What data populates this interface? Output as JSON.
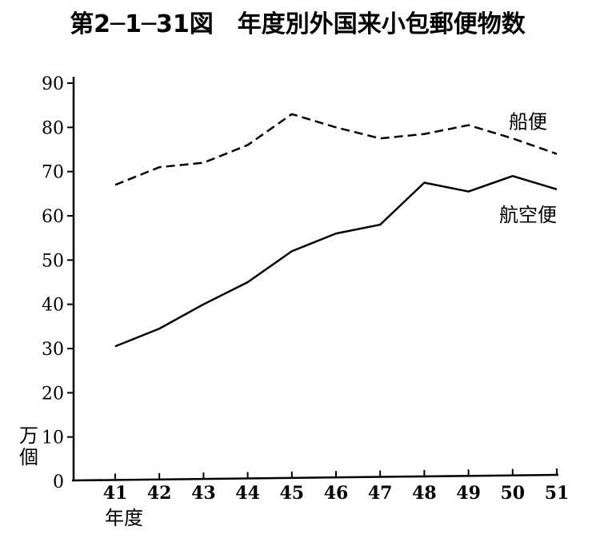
{
  "chart_data": {
    "type": "line",
    "title": "第2─1─31図　年度別外国来小包郵便物数",
    "xlabel": "年度",
    "ylabel": "万個",
    "ylabel_chars": [
      "万",
      "個"
    ],
    "categories": [
      "41",
      "42",
      "43",
      "44",
      "45",
      "46",
      "47",
      "48",
      "49",
      "50",
      "51"
    ],
    "ylim": [
      0,
      90
    ],
    "yticks": [
      0,
      10,
      20,
      30,
      40,
      50,
      60,
      70,
      80,
      90
    ],
    "grid": false,
    "legend": "inline labels at right end of lines",
    "series": [
      {
        "name": "船便",
        "style": "dashed",
        "values": [
          67,
          71,
          72,
          76,
          83,
          80,
          77.5,
          78.5,
          80.5,
          77.5,
          74
        ]
      },
      {
        "name": "航空便",
        "style": "solid",
        "values": [
          30.5,
          34.5,
          40,
          45,
          52,
          56,
          58,
          67.5,
          65.5,
          69,
          66
        ]
      }
    ],
    "colors": {
      "line": "#000000",
      "axis": "#000000",
      "background": "#ffffff"
    }
  }
}
